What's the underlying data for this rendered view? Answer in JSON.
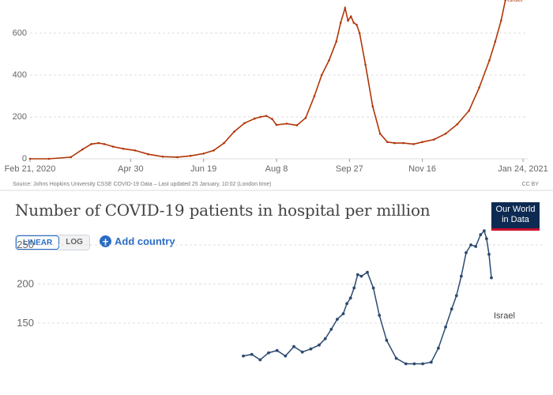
{
  "top_chart": {
    "source": "Source: Johns Hopkins University CSSE COVID-19 Data – Last updated 25 January, 10:02 (London time)",
    "license": "CC BY",
    "line_color": "#b13507"
  },
  "bottom_chart": {
    "title": "Number of COVID-19 patients in hospital per million",
    "logo_line1": "Our World",
    "logo_line2": "in Data",
    "linear_label": "LINEAR",
    "log_label": "LOG",
    "add_country_label": "Add country",
    "line_color": "#2c4a70"
  },
  "chart_data": [
    {
      "type": "line",
      "title": "",
      "xlabel": "",
      "ylabel": "",
      "x_tick_labels": [
        "Feb 21, 2020",
        "Apr 30",
        "Jun 19",
        "Aug 8",
        "Sep 27",
        "Nov 16",
        "Jan 24, 2021"
      ],
      "y_tick_labels": [
        "0",
        "200",
        "400",
        "600"
      ],
      "ylim": [
        0,
        760
      ],
      "grid": "horizontal dashed",
      "series": [
        {
          "name": "Israel",
          "x": [
            "2020-02-21",
            "2020-03-05",
            "2020-03-20",
            "2020-03-28",
            "2020-04-03",
            "2020-04-08",
            "2020-04-12",
            "2020-04-18",
            "2020-04-25",
            "2020-05-03",
            "2020-05-12",
            "2020-05-22",
            "2020-06-01",
            "2020-06-10",
            "2020-06-19",
            "2020-06-26",
            "2020-07-03",
            "2020-07-10",
            "2020-07-17",
            "2020-07-24",
            "2020-07-28",
            "2020-08-01",
            "2020-08-05",
            "2020-08-08",
            "2020-08-15",
            "2020-08-22",
            "2020-08-28",
            "2020-09-03",
            "2020-09-08",
            "2020-09-13",
            "2020-09-18",
            "2020-09-21",
            "2020-09-24",
            "2020-09-26",
            "2020-09-28",
            "2020-09-30",
            "2020-10-02",
            "2020-10-04",
            "2020-10-08",
            "2020-10-13",
            "2020-10-18",
            "2020-10-23",
            "2020-10-28",
            "2020-11-03",
            "2020-11-10",
            "2020-11-16",
            "2020-11-24",
            "2020-12-02",
            "2020-12-10",
            "2020-12-18",
            "2020-12-25",
            "2021-01-01",
            "2021-01-05",
            "2021-01-09",
            "2021-01-12"
          ],
          "values": [
            0,
            0,
            8,
            45,
            70,
            75,
            70,
            58,
            48,
            40,
            22,
            10,
            8,
            14,
            25,
            40,
            75,
            130,
            170,
            192,
            200,
            205,
            190,
            162,
            168,
            160,
            195,
            300,
            400,
            470,
            560,
            650,
            720,
            660,
            680,
            650,
            640,
            600,
            450,
            250,
            120,
            80,
            75,
            75,
            70,
            80,
            92,
            120,
            165,
            230,
            340,
            470,
            560,
            660,
            760
          ]
        }
      ]
    },
    {
      "type": "line",
      "title": "Number of COVID-19 patients in hospital per million",
      "xlabel": "",
      "ylabel": "",
      "y_tick_labels": [
        "150",
        "200",
        "250"
      ],
      "ylim": [
        100,
        280
      ],
      "grid": "horizontal dashed",
      "series": [
        {
          "name": "Israel",
          "x": [
            "2020-07-01",
            "2020-07-08",
            "2020-07-15",
            "2020-07-22",
            "2020-07-29",
            "2020-08-05",
            "2020-08-12",
            "2020-08-19",
            "2020-08-26",
            "2020-09-02",
            "2020-09-07",
            "2020-09-12",
            "2020-09-17",
            "2020-09-22",
            "2020-09-25",
            "2020-09-28",
            "2020-10-01",
            "2020-10-04",
            "2020-10-07",
            "2020-10-12",
            "2020-10-17",
            "2020-10-22",
            "2020-10-28",
            "2020-11-05",
            "2020-11-13",
            "2020-11-20",
            "2020-11-27",
            "2020-12-04",
            "2020-12-10",
            "2020-12-16",
            "2020-12-21",
            "2020-12-25",
            "2020-12-29",
            "2021-01-02",
            "2021-01-06",
            "2021-01-10",
            "2021-01-14",
            "2021-01-17",
            "2021-01-19",
            "2021-01-21",
            "2021-01-23"
          ],
          "values": [
            108,
            110,
            103,
            112,
            115,
            108,
            120,
            113,
            117,
            122,
            130,
            142,
            155,
            162,
            175,
            182,
            195,
            212,
            210,
            215,
            195,
            160,
            128,
            105,
            98,
            98,
            98,
            100,
            118,
            145,
            168,
            185,
            210,
            240,
            250,
            248,
            263,
            268,
            258,
            238,
            208
          ]
        }
      ]
    }
  ]
}
